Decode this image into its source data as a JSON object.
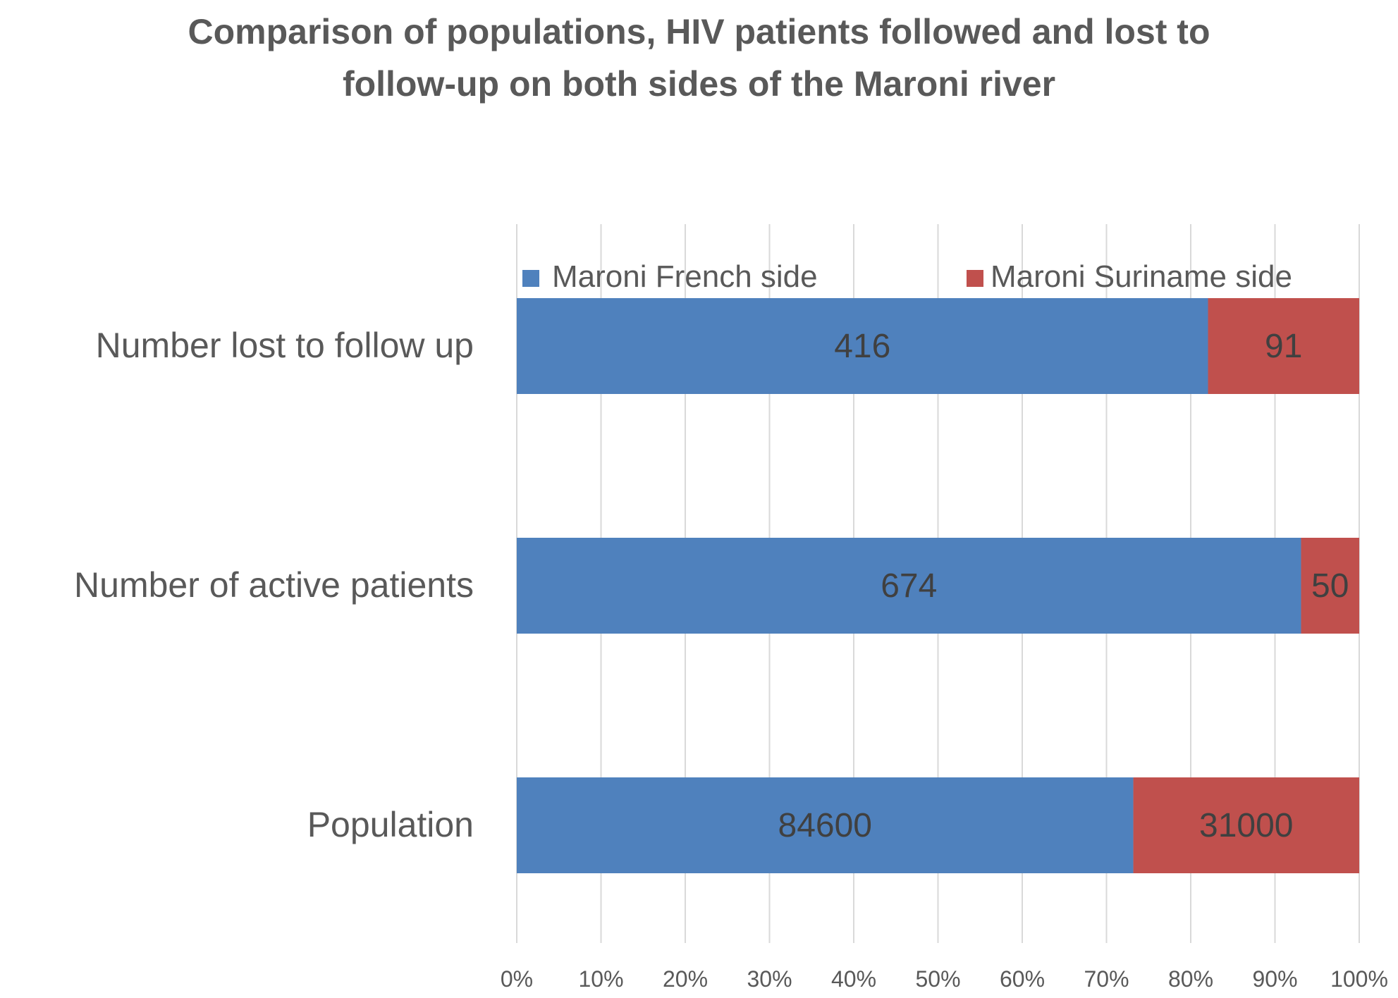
{
  "chart_data": {
    "type": "bar",
    "orientation": "horizontal",
    "stacking": "percent",
    "title_lines": [
      "Comparison of populations, HIV patients followed and lost to",
      "follow-up on both sides of the Maroni river"
    ],
    "categories": [
      "Number lost to follow up",
      "Number of active patients",
      "Population"
    ],
    "series": [
      {
        "name": "Maroni French side",
        "color": "#4f81bd",
        "values": [
          416,
          674,
          84600
        ],
        "labels": [
          "416",
          "674",
          "84600"
        ]
      },
      {
        "name": "Maroni Suriname side",
        "color": "#c0504d",
        "values": [
          91,
          50,
          31000
        ],
        "labels": [
          "91",
          "50",
          "31000"
        ]
      }
    ],
    "x_ticks": [
      "0%",
      "10%",
      "20%",
      "30%",
      "40%",
      "50%",
      "60%",
      "70%",
      "80%",
      "90%",
      "100%"
    ],
    "xlim": [
      0,
      100
    ],
    "grid": true,
    "legend_position": "top"
  }
}
